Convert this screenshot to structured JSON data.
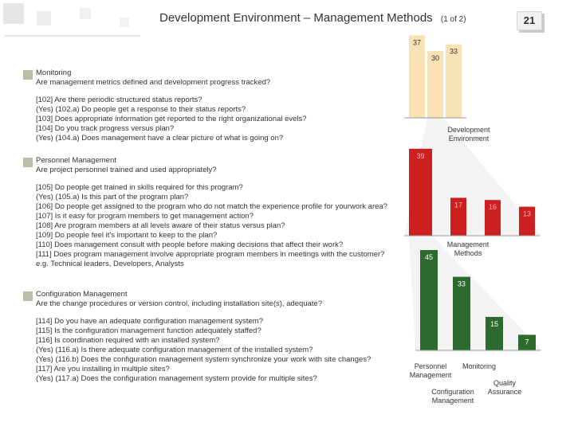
{
  "header": {
    "title": "Development Environment – Management Methods",
    "page_of": "(1 of 2)",
    "page_number": "21"
  },
  "colors": {
    "dev_env": "#f7e1b5",
    "mgmt_methods": "#cc1f1f",
    "monitoring": "#2d6a2d",
    "bullet": "#b8bfa8"
  },
  "sections": [
    {
      "heading": "Monitoring",
      "question": "Are management metrics defined and development progress tracked?",
      "items": [
        "[102] Are there periodic structured status reports?",
        "(Yes) (102.a) Do people get a response to their status reports?",
        "[103] Does appropriate information get reported to the right organizational evels?",
        "[104] Do you track progress versus plan?",
        "(Yes) (104.a) Does management have a clear picture of what is going on?"
      ]
    },
    {
      "heading": "Personnel Management",
      "question": "Are project personnel trained and used appropriately?",
      "items": [
        "[105] Do people get trained in skills required for this program?",
        "(Yes) (105.a) Is this part of the program plan?",
        "[106] Do people get assigned to the program who do not match the experience profile for yourwork area?",
        "[107] Is it easy for program members to get management action?",
        "[108] Are program members at all levels aware of their status versus plan?",
        "[109] Do people feel it's important to keep to the plan?",
        "[110] Does management consult with people before making decisions that affect their work?",
        "[111] Does program management involve appropriate program members in meetings with the customer? e.g. Technical leaders, Developers, Analysts"
      ]
    },
    {
      "heading": "Configuration Management",
      "question": "Are the change procedures or version control, including installation site(s), adequate?",
      "items": [
        "[114] Do you have an adequate configuration management system?",
        "[115] Is the configuration management function adequately staffed?",
        "[116] Is coordination required with an installed system?",
        "(Yes) (116.a) Is there adequate configuration management of the installed system?",
        "(Yes) (116.b) Does the configuration management system synchronize your work with site changes?",
        "[117] Are you installing in multiple sites?",
        "(Yes) (117.a) Does the configuration management system provide for multiple sites?"
      ]
    }
  ],
  "chart_data": [
    {
      "type": "bar",
      "categories": [
        "",
        "",
        ""
      ],
      "values": [
        37,
        30,
        33
      ],
      "xlabel": "Development Environment"
    },
    {
      "type": "bar",
      "categories": [
        "",
        "",
        "",
        ""
      ],
      "values": [
        39,
        17,
        16,
        13
      ],
      "xlabel": "Management Methods"
    },
    {
      "type": "bar",
      "categories": [
        "Personnel Management",
        "Monitoring",
        "Configuration Management",
        "Quality Assurance"
      ],
      "values": [
        45,
        33,
        15,
        7
      ]
    }
  ]
}
